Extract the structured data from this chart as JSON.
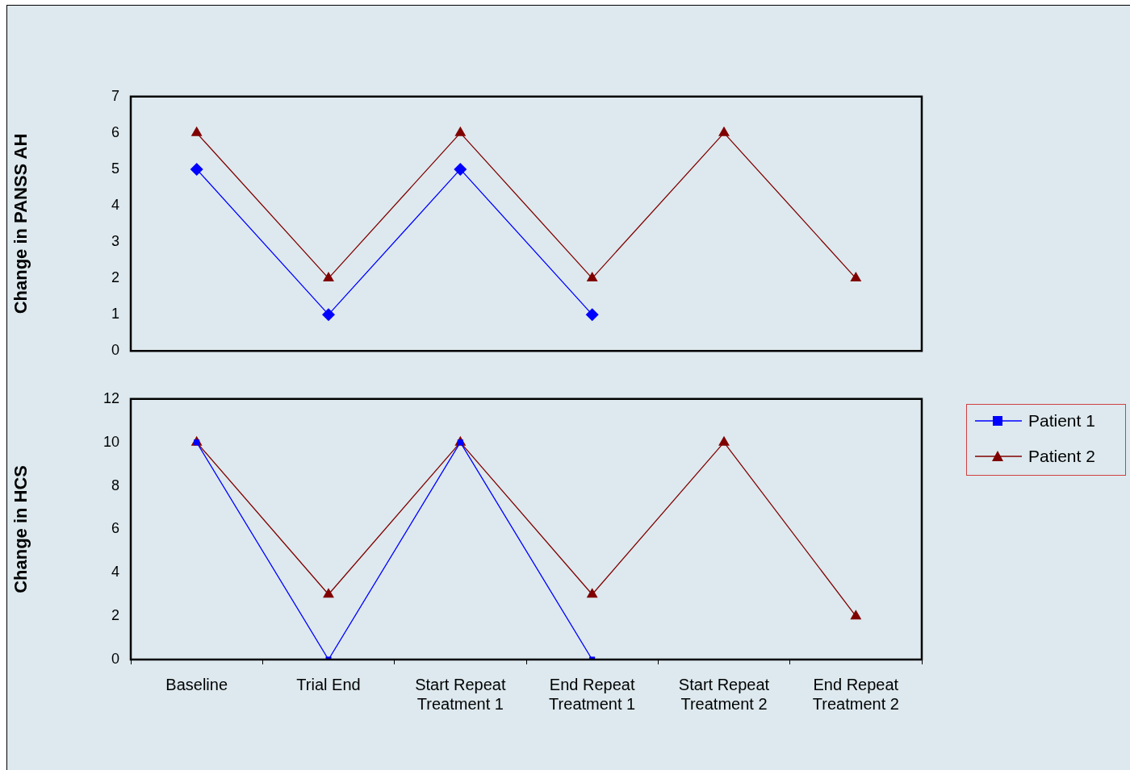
{
  "chart_data": [
    {
      "type": "line",
      "ylabel": "Change in PANSS AH",
      "categories": [
        null,
        null,
        null,
        null,
        null,
        null
      ],
      "ylim": [
        0,
        7
      ],
      "yticks": [
        0,
        1,
        2,
        3,
        4,
        5,
        6,
        7
      ],
      "grid": false,
      "tick_labels": "y",
      "line_style": "solid",
      "series": [
        {
          "color": "#0000ff",
          "marker": "diamond",
          "values": [
            5,
            1,
            5,
            1,
            null,
            null
          ]
        },
        {
          "color": "#800000",
          "marker": "triangle",
          "values": [
            6,
            2,
            6,
            2,
            6,
            2
          ]
        }
      ]
    },
    {
      "type": "line",
      "ylabel": "Change in HCS",
      "categories": [
        "Baseline",
        "Trial End",
        "Start Repeat Treatment 1",
        "End Repeat Treatment 1",
        "Start Repeat Treatment 2",
        "End Repeat Treatment 2"
      ],
      "ylim": [
        0,
        12
      ],
      "yticks": [
        0,
        2,
        4,
        6,
        8,
        10,
        12
      ],
      "grid": false,
      "legend": "right",
      "line_style": "solid",
      "series": [
        {
          "name": "Patient 1",
          "color": "#0000ff",
          "marker": "square",
          "values": [
            10,
            0,
            10,
            0,
            null,
            null
          ]
        },
        {
          "name": "Patient 2",
          "color": "#800000",
          "marker": "triangle",
          "values": [
            10,
            3,
            10,
            3,
            10,
            2
          ]
        }
      ]
    }
  ]
}
